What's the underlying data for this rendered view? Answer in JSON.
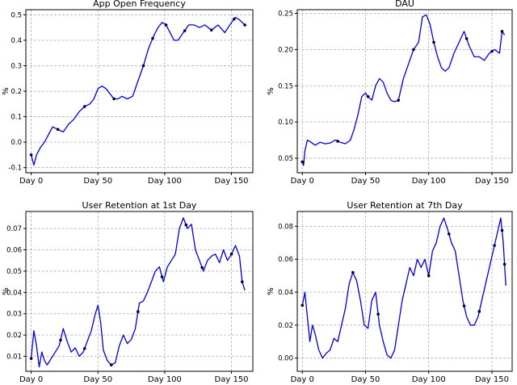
{
  "figure": {
    "colors": {
      "line": "#0000dd",
      "marker": "#000033",
      "grid": "#b0b0b0",
      "axis": "#000000"
    }
  },
  "chart_data": [
    {
      "type": "line",
      "title": "App Open Frequency",
      "ylabel": "%",
      "xlabel": "",
      "xticks": [
        "Day 0",
        "Day 50",
        "Day 100",
        "Day 150"
      ],
      "xtick_values": [
        0,
        50,
        100,
        150
      ],
      "yticks": [
        "-0.1",
        "0.0",
        "0.1",
        "0.2",
        "0.3",
        "0.4",
        "0.5"
      ],
      "ytick_values": [
        -0.1,
        0.0,
        0.1,
        0.2,
        0.3,
        0.4,
        0.5
      ],
      "xlim": [
        -4,
        166
      ],
      "ylim": [
        -0.12,
        0.52
      ],
      "grid": true,
      "x": [
        0,
        2,
        4,
        7,
        10,
        13,
        16,
        20,
        24,
        28,
        32,
        36,
        40,
        44,
        47,
        50,
        53,
        56,
        59,
        62,
        65,
        68,
        72,
        76,
        80,
        84,
        88,
        92,
        95,
        98,
        101,
        104,
        107,
        110,
        114,
        118,
        122,
        126,
        130,
        135,
        140,
        145,
        150,
        153,
        156,
        158,
        160
      ],
      "values": [
        -0.05,
        -0.09,
        -0.05,
        -0.02,
        0.0,
        0.03,
        0.06,
        0.05,
        0.04,
        0.07,
        0.09,
        0.12,
        0.14,
        0.15,
        0.17,
        0.21,
        0.22,
        0.21,
        0.19,
        0.17,
        0.17,
        0.18,
        0.17,
        0.18,
        0.24,
        0.3,
        0.37,
        0.42,
        0.45,
        0.47,
        0.46,
        0.43,
        0.4,
        0.4,
        0.43,
        0.46,
        0.46,
        0.45,
        0.46,
        0.44,
        0.46,
        0.43,
        0.47,
        0.49,
        0.48,
        0.47,
        0.46
      ],
      "markers": [
        0,
        20,
        40,
        62,
        84,
        91,
        101,
        115,
        135,
        152,
        160
      ]
    },
    {
      "type": "line",
      "title": "DAU",
      "ylabel": "%",
      "xlabel": "",
      "xticks": [
        "Day 0",
        "Day 50",
        "Day 100",
        "Day 150"
      ],
      "xtick_values": [
        0,
        50,
        100,
        150
      ],
      "yticks": [
        "0.05",
        "0.10",
        "0.15",
        "0.20",
        "0.25"
      ],
      "ytick_values": [
        0.05,
        0.1,
        0.15,
        0.2,
        0.25
      ],
      "xlim": [
        -4,
        166
      ],
      "ylim": [
        0.03,
        0.255
      ],
      "grid": true,
      "x": [
        0,
        1,
        2,
        4,
        7,
        10,
        14,
        18,
        22,
        26,
        30,
        34,
        38,
        41,
        44,
        47,
        50,
        52,
        55,
        58,
        61,
        64,
        67,
        70,
        73,
        76,
        80,
        84,
        88,
        92,
        95,
        98,
        101,
        104,
        107,
        110,
        113,
        116,
        120,
        124,
        128,
        132,
        136,
        140,
        144,
        148,
        152,
        156,
        158,
        160
      ],
      "values": [
        0.045,
        0.04,
        0.06,
        0.075,
        0.072,
        0.068,
        0.072,
        0.07,
        0.071,
        0.075,
        0.072,
        0.07,
        0.075,
        0.09,
        0.11,
        0.135,
        0.14,
        0.135,
        0.13,
        0.15,
        0.16,
        0.155,
        0.14,
        0.13,
        0.128,
        0.13,
        0.16,
        0.18,
        0.2,
        0.21,
        0.245,
        0.248,
        0.235,
        0.21,
        0.19,
        0.175,
        0.17,
        0.175,
        0.195,
        0.21,
        0.225,
        0.205,
        0.19,
        0.19,
        0.185,
        0.195,
        0.2,
        0.195,
        0.225,
        0.22
      ],
      "markers": [
        0,
        28,
        52,
        76,
        88,
        104,
        130,
        150,
        158
      ]
    },
    {
      "type": "line",
      "title": "User Retention at 1st Day",
      "ylabel": "%",
      "xlabel": "",
      "xticks": [
        "Day 0",
        "Day 50",
        "Day 100",
        "Day 150"
      ],
      "xtick_values": [
        0,
        50,
        100,
        150
      ],
      "yticks": [
        "0.01",
        "0.02",
        "0.03",
        "0.04",
        "0.05",
        "0.06",
        "0.07"
      ],
      "ytick_values": [
        0.01,
        0.02,
        0.03,
        0.04,
        0.05,
        0.06,
        0.07
      ],
      "xlim": [
        -4,
        166
      ],
      "ylim": [
        0.003,
        0.078
      ],
      "grid": true,
      "x": [
        0,
        2,
        4,
        6,
        8,
        10,
        12,
        15,
        18,
        21,
        24,
        27,
        30,
        33,
        36,
        39,
        42,
        45,
        48,
        50,
        52,
        54,
        57,
        60,
        63,
        66,
        69,
        72,
        75,
        78,
        81,
        84,
        87,
        90,
        93,
        96,
        99,
        102,
        105,
        108,
        111,
        114,
        117,
        120,
        123,
        126,
        129,
        132,
        135,
        138,
        141,
        144,
        147,
        150,
        153,
        156,
        158,
        160
      ],
      "values": [
        0.009,
        0.022,
        0.015,
        0.005,
        0.012,
        0.008,
        0.006,
        0.009,
        0.012,
        0.015,
        0.023,
        0.017,
        0.012,
        0.014,
        0.01,
        0.012,
        0.017,
        0.022,
        0.03,
        0.034,
        0.026,
        0.013,
        0.008,
        0.006,
        0.007,
        0.015,
        0.02,
        0.016,
        0.018,
        0.023,
        0.035,
        0.036,
        0.04,
        0.045,
        0.05,
        0.052,
        0.045,
        0.052,
        0.055,
        0.058,
        0.07,
        0.075,
        0.07,
        0.072,
        0.06,
        0.055,
        0.05,
        0.055,
        0.057,
        0.058,
        0.054,
        0.06,
        0.055,
        0.058,
        0.062,
        0.057,
        0.045,
        0.041
      ],
      "markers": [
        0,
        22,
        40,
        60,
        80,
        98,
        116,
        128,
        150,
        158
      ]
    },
    {
      "type": "line",
      "title": "User Retention at 7th Day",
      "ylabel": "%",
      "xlabel": "",
      "xticks": [
        "Day 0",
        "Day 50",
        "Day 100",
        "Day 150"
      ],
      "xtick_values": [
        0,
        50,
        100,
        150
      ],
      "yticks": [
        "0.00",
        "0.02",
        "0.04",
        "0.06",
        "0.08"
      ],
      "ytick_values": [
        0.0,
        0.02,
        0.04,
        0.06,
        0.08
      ],
      "xlim": [
        -4,
        166
      ],
      "ylim": [
        -0.008,
        0.089
      ],
      "grid": true,
      "x": [
        0,
        2,
        4,
        6,
        8,
        10,
        13,
        16,
        19,
        22,
        25,
        28,
        31,
        34,
        37,
        40,
        43,
        46,
        49,
        52,
        55,
        58,
        61,
        64,
        67,
        70,
        73,
        76,
        79,
        82,
        85,
        88,
        91,
        94,
        97,
        100,
        103,
        106,
        109,
        112,
        115,
        118,
        121,
        124,
        127,
        130,
        133,
        136,
        139,
        142,
        145,
        148,
        151,
        154,
        157,
        159,
        161
      ],
      "values": [
        0.032,
        0.04,
        0.025,
        0.01,
        0.02,
        0.015,
        0.005,
        0.0,
        0.003,
        0.005,
        0.012,
        0.01,
        0.02,
        0.03,
        0.045,
        0.052,
        0.047,
        0.035,
        0.02,
        0.018,
        0.035,
        0.04,
        0.02,
        0.01,
        0.002,
        0.0,
        0.005,
        0.02,
        0.035,
        0.045,
        0.055,
        0.05,
        0.06,
        0.055,
        0.06,
        0.05,
        0.065,
        0.07,
        0.08,
        0.085,
        0.078,
        0.07,
        0.065,
        0.05,
        0.035,
        0.025,
        0.02,
        0.02,
        0.025,
        0.035,
        0.045,
        0.055,
        0.065,
        0.075,
        0.085,
        0.07,
        0.044
      ],
      "markers": [
        0,
        40,
        60,
        100,
        116,
        128,
        140,
        152,
        158,
        160
      ]
    }
  ]
}
